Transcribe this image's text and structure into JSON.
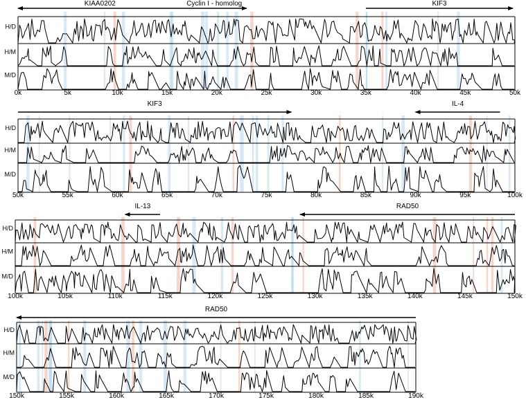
{
  "chart_data": {
    "type": "area",
    "title": "",
    "xlabel": "",
    "ylabel": "",
    "comparison_labels": [
      "H/D",
      "H/M",
      "M/D"
    ],
    "colors": {
      "coding_exon": "#a9cfe8",
      "utr_exon": "#f2b39a",
      "line": "#000000"
    },
    "panels": [
      {
        "xlim_k": [
          0,
          50
        ],
        "ticks": [
          "0k",
          "5k",
          "10k",
          "15k",
          "20k",
          "25k",
          "30k",
          "35k",
          "40k",
          "45k",
          "50k"
        ],
        "genes": [
          {
            "name": "KIAA0202",
            "start_k": 16.5,
            "end_k": 0.0,
            "direction": "reverse"
          },
          {
            "name": "Cyclin I - homolog",
            "start_k": 16.5,
            "end_k": 23.0,
            "direction": "forward"
          },
          {
            "name": "KIF3",
            "start_k": 35.0,
            "end_k": 49.8,
            "direction": "forward"
          }
        ]
      },
      {
        "xlim_k": [
          50,
          100
        ],
        "ticks": [
          "50k",
          "55k",
          "60k",
          "65k",
          "70k",
          "75k",
          "80k",
          "85k",
          "90k",
          "95k",
          "100k"
        ],
        "genes": [
          {
            "name": "KIF3",
            "start_k": 50.0,
            "end_k": 77.5,
            "direction": "forward"
          },
          {
            "name": "IL-4",
            "start_k": 98.5,
            "end_k": 90.0,
            "direction": "reverse"
          }
        ]
      },
      {
        "xlim_k": [
          100,
          150
        ],
        "ticks": [
          "100k",
          "105k",
          "110k",
          "115k",
          "120k",
          "125k",
          "130k",
          "135k",
          "140k",
          "145k",
          "150k"
        ],
        "genes": [
          {
            "name": "IL-13",
            "start_k": 114.5,
            "end_k": 111.0,
            "direction": "reverse"
          },
          {
            "name": "RAD50",
            "start_k": 150.0,
            "end_k": 128.5,
            "direction": "reverse"
          }
        ]
      },
      {
        "xlim_k": [
          150,
          190
        ],
        "ticks": [
          "150k",
          "155k",
          "160k",
          "165k",
          "170k",
          "175k",
          "180k",
          "185k",
          "190k"
        ],
        "genes": [
          {
            "name": "RAD50",
            "start_k": 190.0,
            "end_k": 150.0,
            "direction": "reverse"
          }
        ]
      }
    ]
  }
}
